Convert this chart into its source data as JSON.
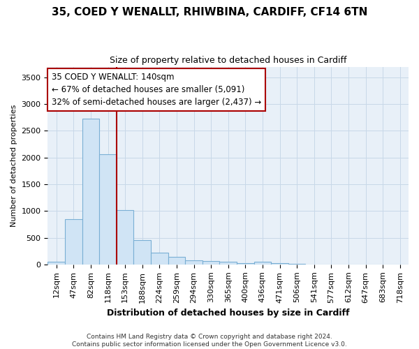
{
  "title_line1": "35, COED Y WENALLT, RHIWBINA, CARDIFF, CF14 6TN",
  "title_line2": "Size of property relative to detached houses in Cardiff",
  "xlabel": "Distribution of detached houses by size in Cardiff",
  "ylabel": "Number of detached properties",
  "categories": [
    "12sqm",
    "47sqm",
    "82sqm",
    "118sqm",
    "153sqm",
    "188sqm",
    "224sqm",
    "259sqm",
    "294sqm",
    "330sqm",
    "365sqm",
    "400sqm",
    "436sqm",
    "471sqm",
    "506sqm",
    "541sqm",
    "577sqm",
    "612sqm",
    "647sqm",
    "683sqm",
    "718sqm"
  ],
  "values": [
    55,
    850,
    2730,
    2060,
    1010,
    450,
    215,
    145,
    80,
    65,
    50,
    30,
    55,
    25,
    5,
    3,
    2,
    1,
    1,
    1,
    0
  ],
  "bar_color": "#d0e4f5",
  "bar_edge_color": "#7aafd4",
  "vline_x_pos": 3.5,
  "vline_color": "#aa0000",
  "annotation_line1": "35 COED Y WENALLT: 140sqm",
  "annotation_line2": "← 67% of detached houses are smaller (5,091)",
  "annotation_line3": "32% of semi-detached houses are larger (2,437) →",
  "ylim": [
    0,
    3700
  ],
  "yticks": [
    0,
    500,
    1000,
    1500,
    2000,
    2500,
    3000,
    3500
  ],
  "footer_line1": "Contains HM Land Registry data © Crown copyright and database right 2024.",
  "footer_line2": "Contains public sector information licensed under the Open Government Licence v3.0.",
  "grid_color": "#c8d8e8",
  "background_color": "#e8f0f8",
  "title_fontsize": 11,
  "subtitle_fontsize": 9,
  "tick_fontsize": 8,
  "ylabel_fontsize": 8,
  "xlabel_fontsize": 9
}
